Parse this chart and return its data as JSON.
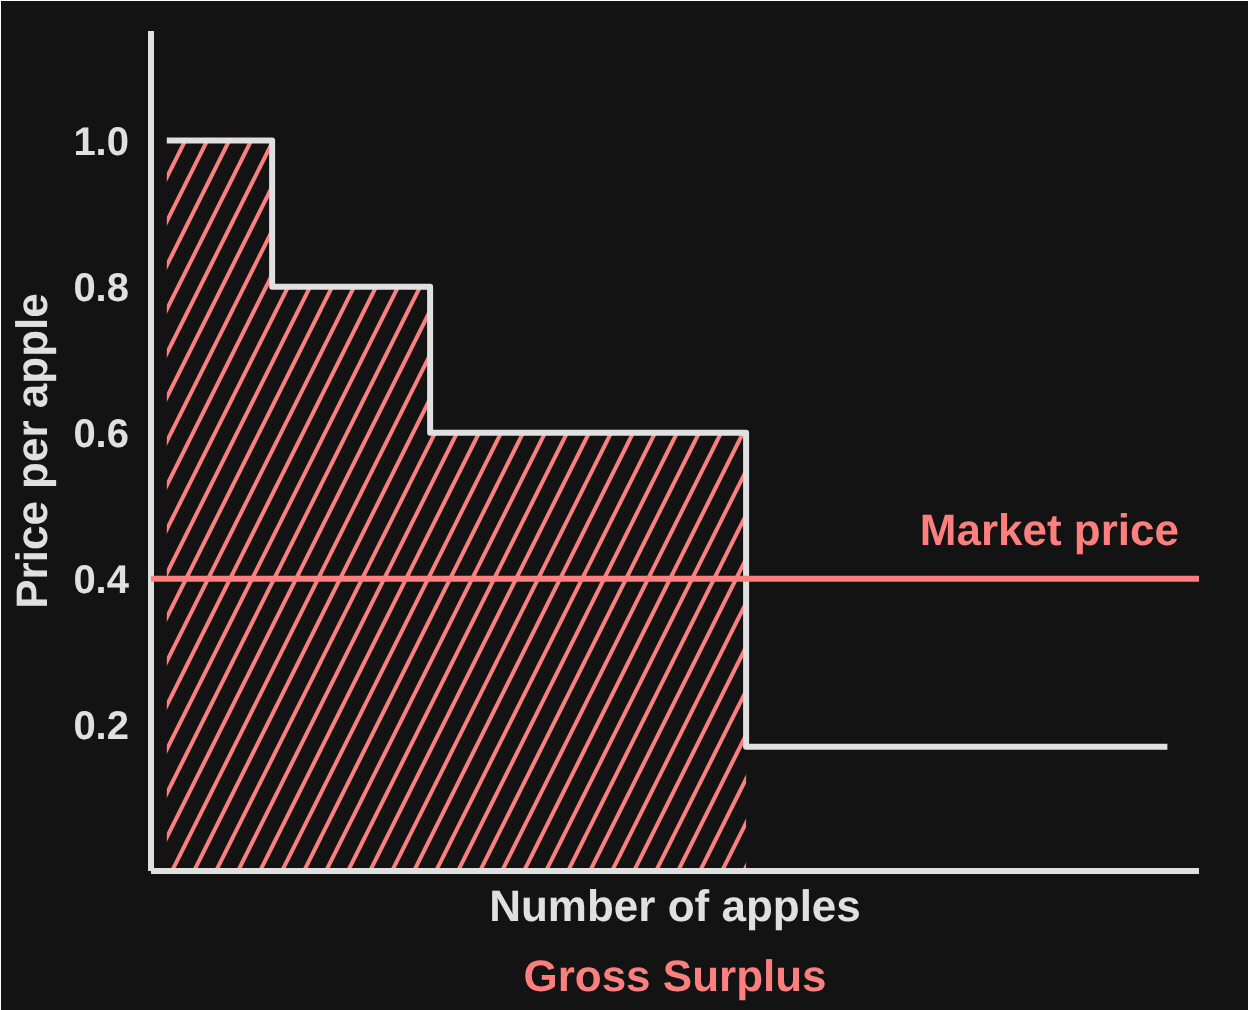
{
  "chart_data": {
    "type": "step",
    "xlabel": "Number of apples",
    "ylabel": "Price per apple",
    "annotations": [
      "Gross Surplus"
    ],
    "categories": [
      null,
      null,
      null,
      null,
      null,
      null,
      null,
      null,
      null,
      null,
      null,
      null,
      null,
      null,
      null,
      null,
      null,
      null,
      null,
      null
    ],
    "series": [
      {
        "color": "#e0e0e0",
        "values": [
          1.0,
          1.0,
          0.8,
          0.8,
          0.8,
          0.6,
          0.6,
          0.6,
          0.6,
          0.6,
          0.6,
          0.17,
          0.17,
          0.17,
          0.17,
          0.17,
          0.17,
          0.17,
          0.17,
          0.17
        ]
      },
      {
        "type": "area",
        "color": "#ff7f7f",
        "values": [
          1.0,
          1.0,
          0.8,
          0.8,
          0.8,
          0.6,
          0.6,
          0.6,
          0.6,
          0.6,
          0.6,
          0.6,
          null,
          null,
          null,
          null,
          null,
          null,
          null,
          null
        ],
        "line_style": "dashed"
      }
    ],
    "ylim": [
      0,
      1.15
    ],
    "yticks": [
      {
        "value": 0.2,
        "label": "0.2"
      },
      {
        "value": 0.4,
        "label": "0.4"
      },
      {
        "value": 0.6,
        "label": "0.6"
      },
      {
        "value": 0.8,
        "label": "0.8"
      },
      {
        "value": 1,
        "label": "1.0"
      }
    ],
    "ref_lines": [
      {
        "axis": "y",
        "value": 0.4,
        "label": "Market price",
        "color": "#ff7f7f"
      }
    ],
    "grid": false
  }
}
